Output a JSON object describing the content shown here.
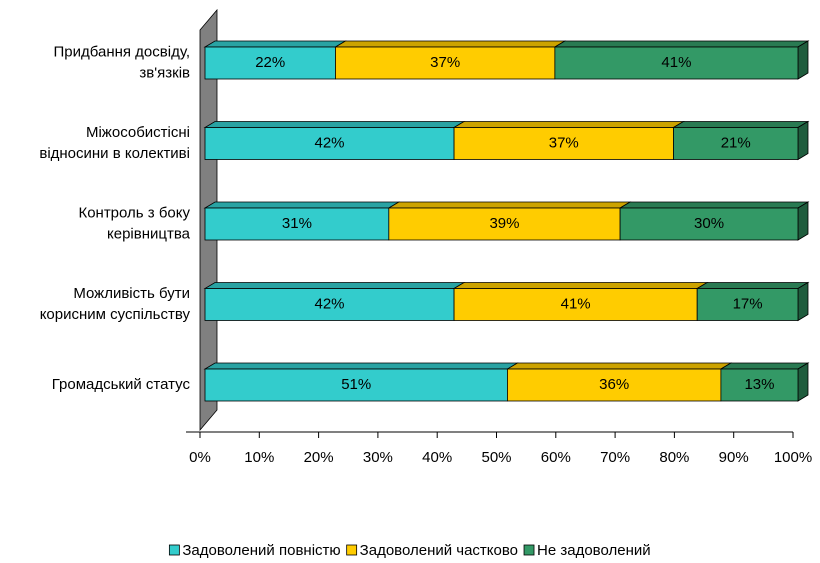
{
  "chart_data": {
    "type": "bar",
    "orientation": "horizontal",
    "stacked": true,
    "categories": [
      "Придбання досвіду,\nзв'язків",
      "Міжособистісні\nвідносини  в колективі",
      "Контроль з боку\nкерівництва",
      "Можливість бути\nкорисним суспільству",
      "Громадський статус"
    ],
    "series": [
      {
        "name": "Задоволений повністю",
        "color": "#33cccc",
        "values": [
          22,
          42,
          31,
          42,
          51
        ],
        "value_labels": [
          "22%",
          "42%",
          "31%",
          "42%",
          "51%"
        ]
      },
      {
        "name": "Задоволений частково",
        "color": "#ffcc00",
        "values": [
          37,
          37,
          39,
          41,
          36
        ],
        "value_labels": [
          "37%",
          "37%",
          "39%",
          "41%",
          "36%"
        ]
      },
      {
        "name": "Не задоволений",
        "color": "#339966",
        "values": [
          41,
          21,
          30,
          17,
          13
        ],
        "value_labels": [
          "41%",
          "21%",
          "30%",
          "17%",
          "13%"
        ]
      }
    ],
    "xlim": [
      0,
      100
    ],
    "xticks": [
      {
        "value": 0,
        "label": "0%"
      },
      {
        "value": 10,
        "label": "10%"
      },
      {
        "value": 20,
        "label": "20%"
      },
      {
        "value": 30,
        "label": "30%"
      },
      {
        "value": 40,
        "label": "40%"
      },
      {
        "value": 50,
        "label": "50%"
      },
      {
        "value": 60,
        "label": "60%"
      },
      {
        "value": 70,
        "label": "70%"
      },
      {
        "value": 80,
        "label": "80%"
      },
      {
        "value": 90,
        "label": "90%"
      },
      {
        "value": 100,
        "label": "100%"
      }
    ],
    "legend": "bottom"
  }
}
